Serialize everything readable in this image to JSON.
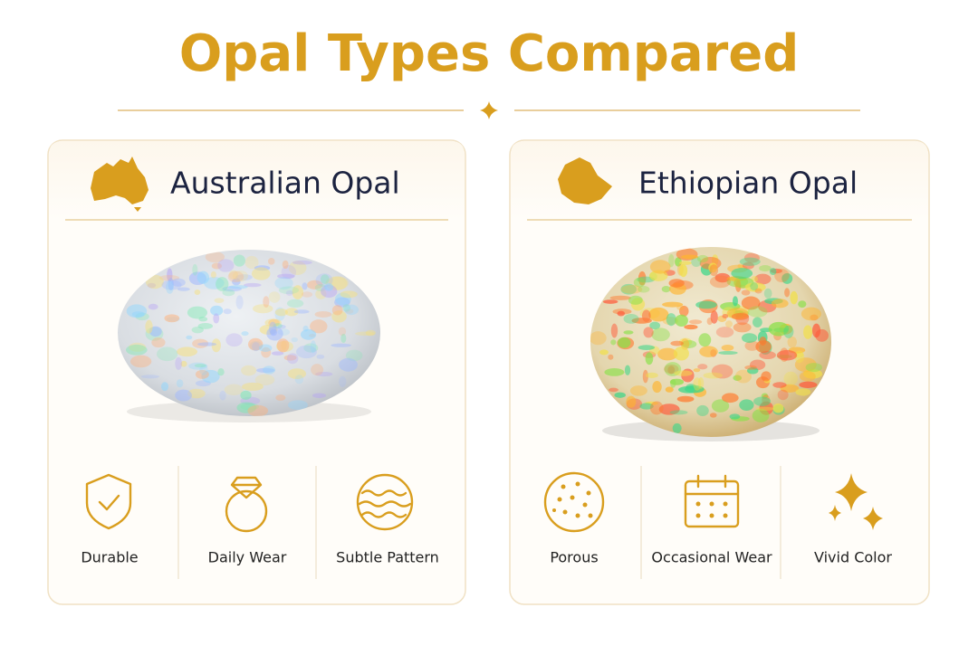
{
  "title": "Opal Types Compared",
  "cards": [
    {
      "title": "Australian Opal",
      "features": [
        "Durable",
        "Daily Wear",
        "Subtle Pattern"
      ]
    },
    {
      "title": "Ethiopian Opal",
      "features": [
        "Porous",
        "Occasional Wear",
        "Vivid Color"
      ]
    }
  ]
}
